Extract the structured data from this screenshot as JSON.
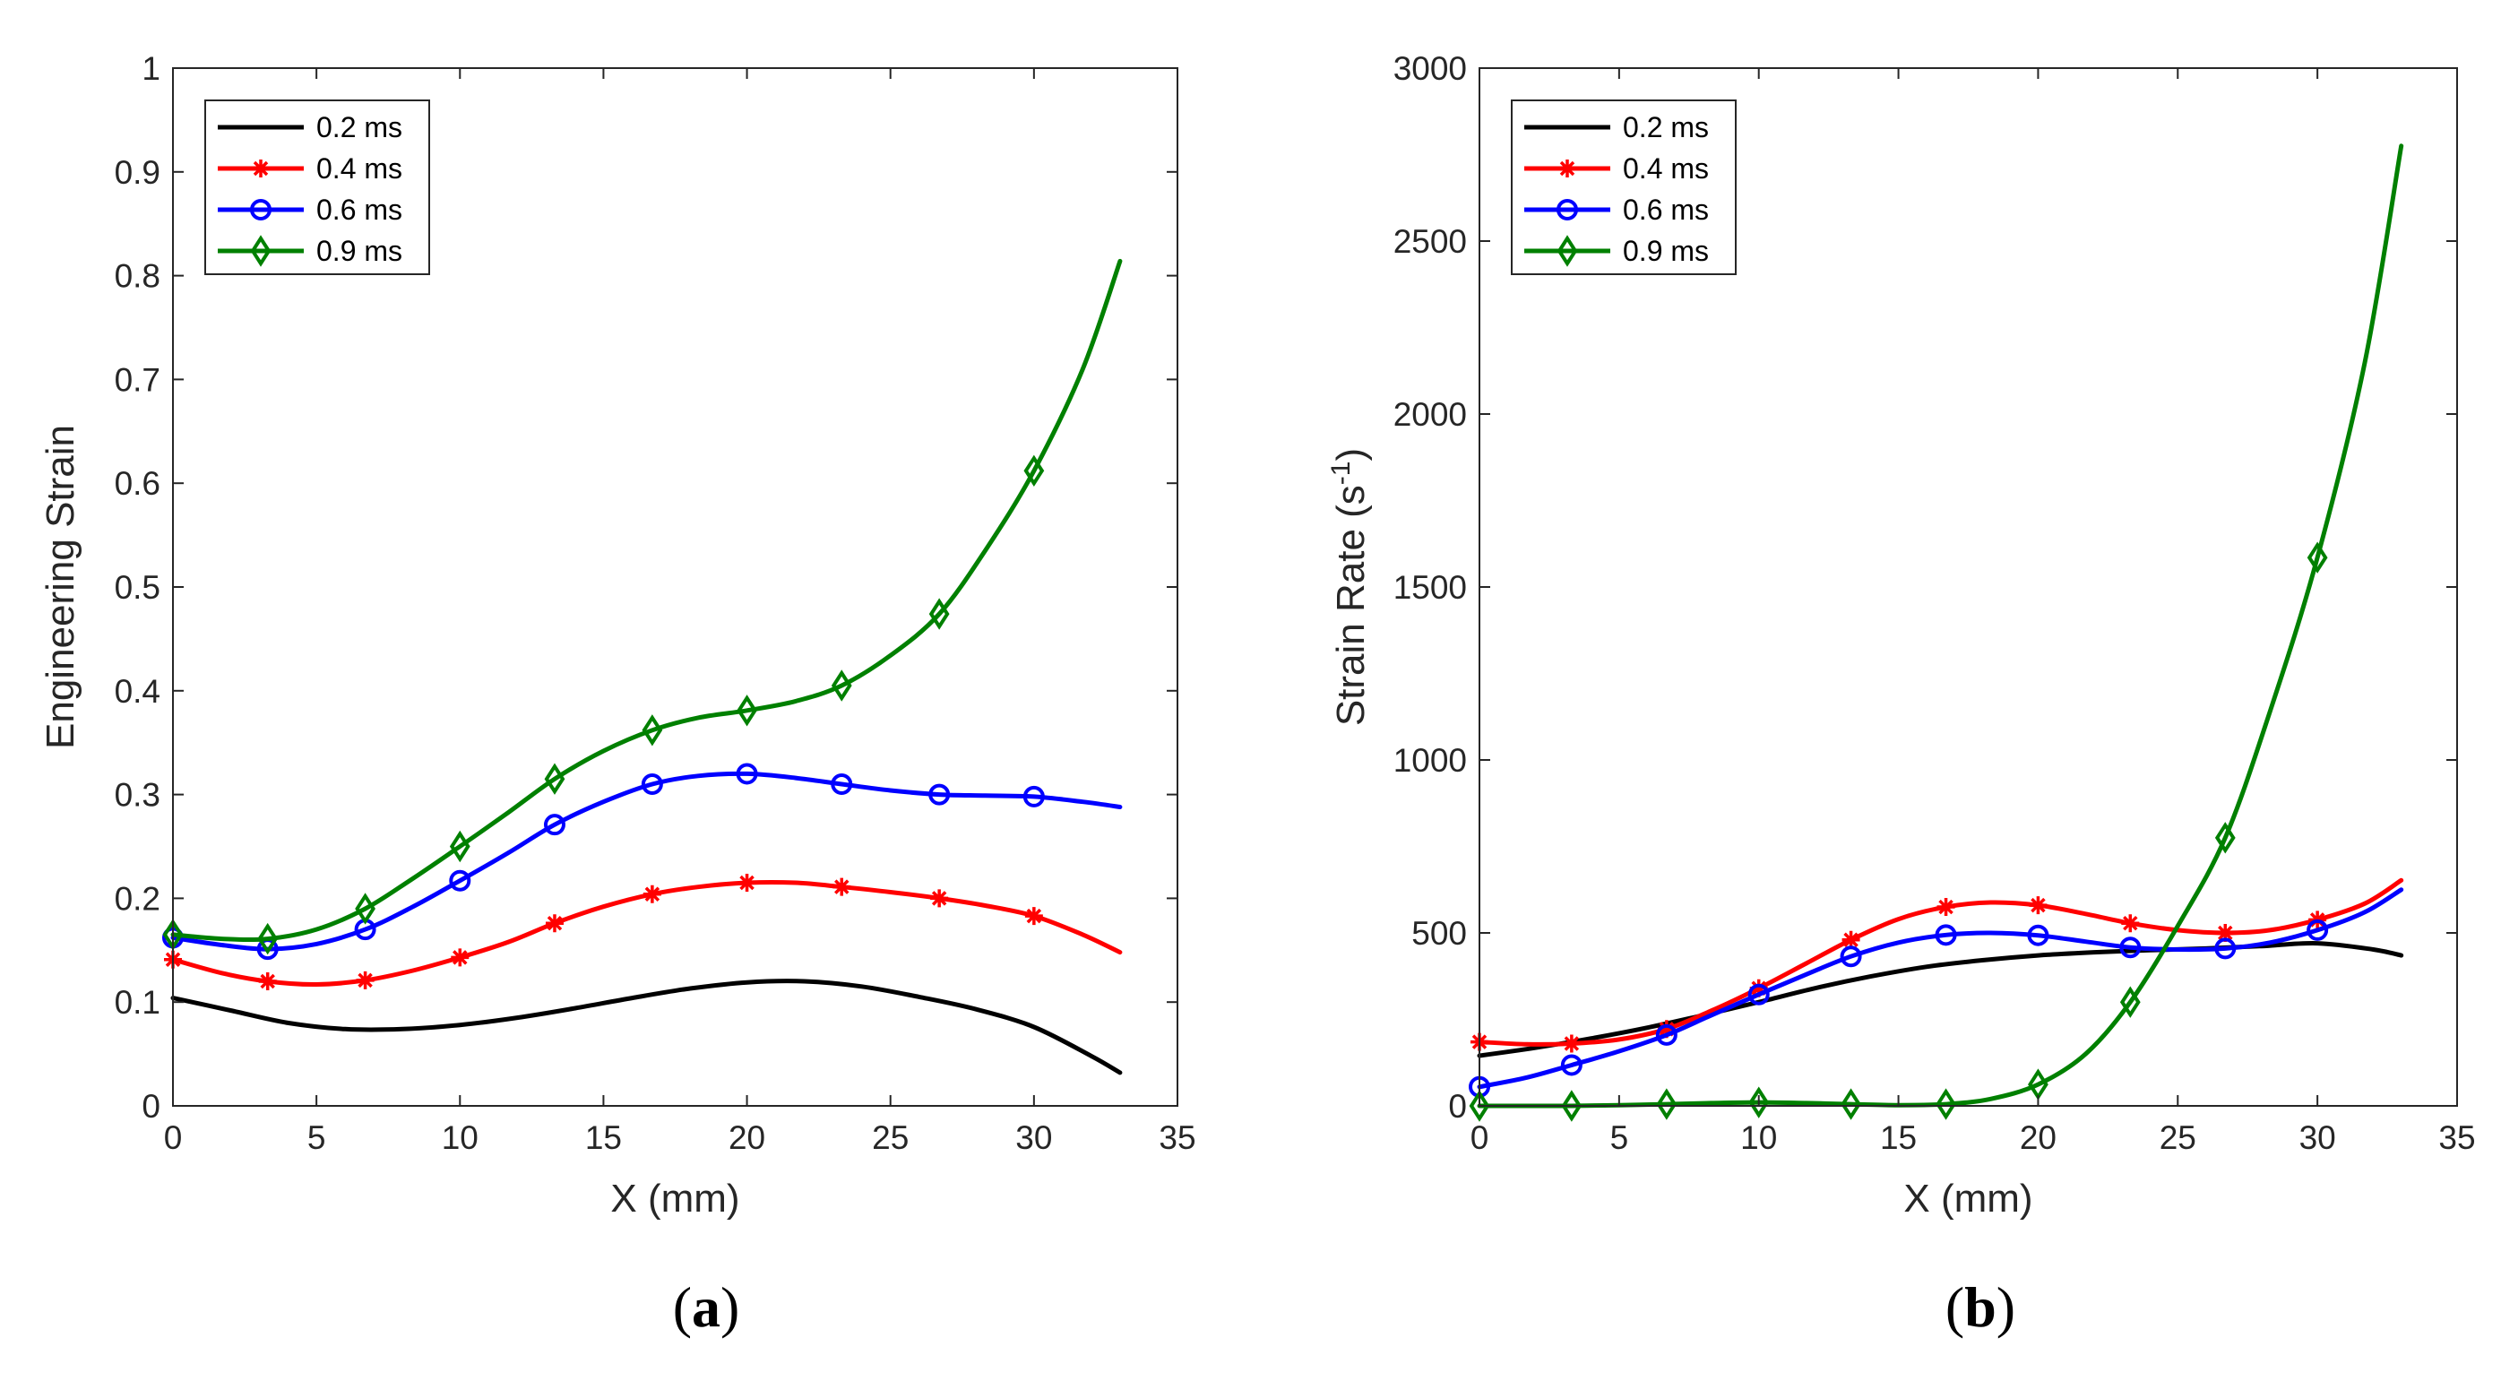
{
  "colors": {
    "0.2 ms": "#000000",
    "0.4 ms": "#ff0000",
    "0.6 ms": "#0000ff",
    "0.9 ms": "#008000"
  },
  "panels": {
    "a": "a",
    "b": "b"
  },
  "chart_data": [
    {
      "type": "line",
      "panel_label": "a",
      "xlabel": "X (mm)",
      "ylabel": "Engineering Strain",
      "xlim": [
        0,
        35
      ],
      "ylim": [
        0,
        1
      ],
      "xticks": [
        0,
        5,
        10,
        15,
        20,
        25,
        30,
        35
      ],
      "yticks": [
        0,
        0.1,
        0.2,
        0.3,
        0.4,
        0.5,
        0.6,
        0.7,
        0.8,
        0.9,
        1
      ],
      "grid": false,
      "legend_position": "top-left",
      "series": [
        {
          "name": "0.2 ms",
          "color": "#000000",
          "marker": "none",
          "x": [
            0,
            2,
            4,
            6,
            8,
            10,
            12,
            14,
            16,
            18,
            20,
            22,
            24,
            26,
            28,
            30,
            32,
            33
          ],
          "y": [
            0.104,
            0.092,
            0.08,
            0.074,
            0.074,
            0.078,
            0.085,
            0.094,
            0.104,
            0.113,
            0.119,
            0.12,
            0.115,
            0.105,
            0.093,
            0.076,
            0.048,
            0.032
          ],
          "marker_x": [],
          "marker_y": []
        },
        {
          "name": "0.4 ms",
          "color": "#ff0000",
          "marker": "asterisk",
          "x": [
            0,
            1.7,
            3.3,
            5,
            6.7,
            8.3,
            10,
            11.7,
            13.3,
            15,
            16.7,
            18.3,
            20,
            21.7,
            23.3,
            25,
            26.7,
            28.3,
            30,
            31.7,
            33
          ],
          "y": [
            0.141,
            0.128,
            0.12,
            0.117,
            0.121,
            0.13,
            0.143,
            0.158,
            0.176,
            0.192,
            0.204,
            0.211,
            0.215,
            0.215,
            0.211,
            0.206,
            0.2,
            0.193,
            0.183,
            0.165,
            0.148
          ],
          "marker_x": [
            0,
            3.3,
            6.7,
            10,
            13.3,
            16.7,
            20,
            23.3,
            26.7,
            30
          ],
          "marker_y": [
            0.141,
            0.12,
            0.121,
            0.143,
            0.176,
            0.204,
            0.215,
            0.211,
            0.2,
            0.183
          ]
        },
        {
          "name": "0.6 ms",
          "color": "#0000ff",
          "marker": "circle",
          "x": [
            0,
            1.7,
            3.3,
            5,
            6.7,
            8.3,
            10,
            11.7,
            13.3,
            15,
            16.7,
            18.3,
            20,
            21.7,
            23.3,
            25,
            26.7,
            28.3,
            30,
            31.7,
            33
          ],
          "y": [
            0.162,
            0.155,
            0.151,
            0.156,
            0.17,
            0.191,
            0.217,
            0.244,
            0.271,
            0.293,
            0.31,
            0.318,
            0.32,
            0.316,
            0.31,
            0.304,
            0.3,
            0.299,
            0.298,
            0.293,
            0.288
          ],
          "marker_x": [
            0,
            3.3,
            6.7,
            10,
            13.3,
            16.7,
            20,
            23.3,
            26.7,
            30
          ],
          "marker_y": [
            0.162,
            0.151,
            0.17,
            0.217,
            0.271,
            0.31,
            0.32,
            0.31,
            0.3,
            0.298
          ]
        },
        {
          "name": "0.9 ms",
          "color": "#008000",
          "marker": "diamond",
          "x": [
            0,
            1.7,
            3.3,
            5,
            6.7,
            8.3,
            10,
            11.7,
            13.3,
            15,
            16.7,
            18.3,
            20,
            21.7,
            23.3,
            25,
            26.7,
            28.3,
            30,
            31.7,
            33
          ],
          "y": [
            0.165,
            0.161,
            0.161,
            0.17,
            0.19,
            0.218,
            0.25,
            0.283,
            0.315,
            0.342,
            0.362,
            0.374,
            0.381,
            0.39,
            0.405,
            0.434,
            0.474,
            0.535,
            0.612,
            0.71,
            0.814
          ],
          "marker_x": [
            0,
            3.3,
            6.7,
            10,
            13.3,
            16.7,
            20,
            23.3,
            26.7,
            30
          ],
          "marker_y": [
            0.165,
            0.161,
            0.19,
            0.25,
            0.315,
            0.362,
            0.381,
            0.405,
            0.474,
            0.612
          ]
        }
      ]
    },
    {
      "type": "line",
      "panel_label": "b",
      "xlabel": "X (mm)",
      "ylabel": "Strain Rate (s",
      "ylabel_sup": "-1",
      "ylabel_end": ")",
      "xlim": [
        0,
        35
      ],
      "ylim": [
        0,
        3000
      ],
      "xticks": [
        0,
        5,
        10,
        15,
        20,
        25,
        30,
        35
      ],
      "yticks": [
        0,
        500,
        1000,
        1500,
        2000,
        2500,
        3000
      ],
      "grid": false,
      "legend_position": "top-left",
      "series": [
        {
          "name": "0.2 ms",
          "color": "#000000",
          "marker": "none",
          "x": [
            0,
            2,
            4,
            6,
            8,
            10,
            12,
            14,
            16,
            18,
            20,
            22,
            24,
            26,
            28,
            30,
            32,
            33
          ],
          "y": [
            145,
            168,
            195,
            226,
            262,
            300,
            340,
            374,
            402,
            421,
            435,
            444,
            450,
            455,
            462,
            470,
            452,
            435
          ],
          "marker_x": [],
          "marker_y": []
        },
        {
          "name": "0.4 ms",
          "color": "#ff0000",
          "marker": "asterisk",
          "x": [
            0,
            1.7,
            3.3,
            5,
            6.7,
            8.3,
            10,
            11.7,
            13.3,
            15,
            16.7,
            18.3,
            20,
            21.7,
            23.3,
            25,
            26.7,
            28.3,
            30,
            31.7,
            33
          ],
          "y": [
            185,
            178,
            180,
            192,
            222,
            275,
            340,
            412,
            480,
            540,
            575,
            588,
            580,
            555,
            528,
            508,
            500,
            508,
            538,
            585,
            652
          ],
          "marker_x": [
            0,
            3.3,
            6.7,
            10,
            13.3,
            16.7,
            20,
            23.3,
            26.7,
            30
          ],
          "marker_y": [
            185,
            180,
            222,
            340,
            480,
            575,
            580,
            528,
            500,
            538
          ]
        },
        {
          "name": "0.6 ms",
          "color": "#0000ff",
          "marker": "circle",
          "x": [
            0,
            1.7,
            3.3,
            5,
            6.7,
            8.3,
            10,
            11.7,
            13.3,
            15,
            16.7,
            18.3,
            20,
            21.7,
            23.3,
            25,
            26.7,
            28.3,
            30,
            31.7,
            33
          ],
          "y": [
            55,
            82,
            118,
            158,
            205,
            262,
            322,
            380,
            432,
            472,
            494,
            500,
            493,
            475,
            458,
            452,
            455,
            472,
            508,
            560,
            625
          ],
          "marker_x": [
            0,
            3.3,
            6.7,
            10,
            13.3,
            16.7,
            20,
            23.3,
            26.7,
            30
          ],
          "marker_y": [
            55,
            118,
            205,
            322,
            432,
            494,
            493,
            458,
            455,
            508
          ]
        },
        {
          "name": "0.9 ms",
          "color": "#008000",
          "marker": "diamond",
          "x": [
            0,
            1.7,
            3.3,
            5,
            6.7,
            8.3,
            10,
            11.7,
            13.3,
            15,
            16.7,
            18.3,
            20,
            21.7,
            23.3,
            25,
            26.7,
            28.3,
            30,
            31.7,
            33
          ],
          "y": [
            0,
            0,
            0,
            2,
            5,
            8,
            10,
            8,
            5,
            2,
            5,
            20,
            62,
            150,
            300,
            520,
            775,
            1140,
            1585,
            2150,
            2775
          ],
          "marker_x": [
            0,
            3.3,
            6.7,
            10,
            13.3,
            16.7,
            20,
            23.3,
            26.7,
            30
          ],
          "marker_y": [
            0,
            0,
            5,
            10,
            5,
            5,
            62,
            300,
            775,
            1585
          ]
        }
      ]
    }
  ]
}
